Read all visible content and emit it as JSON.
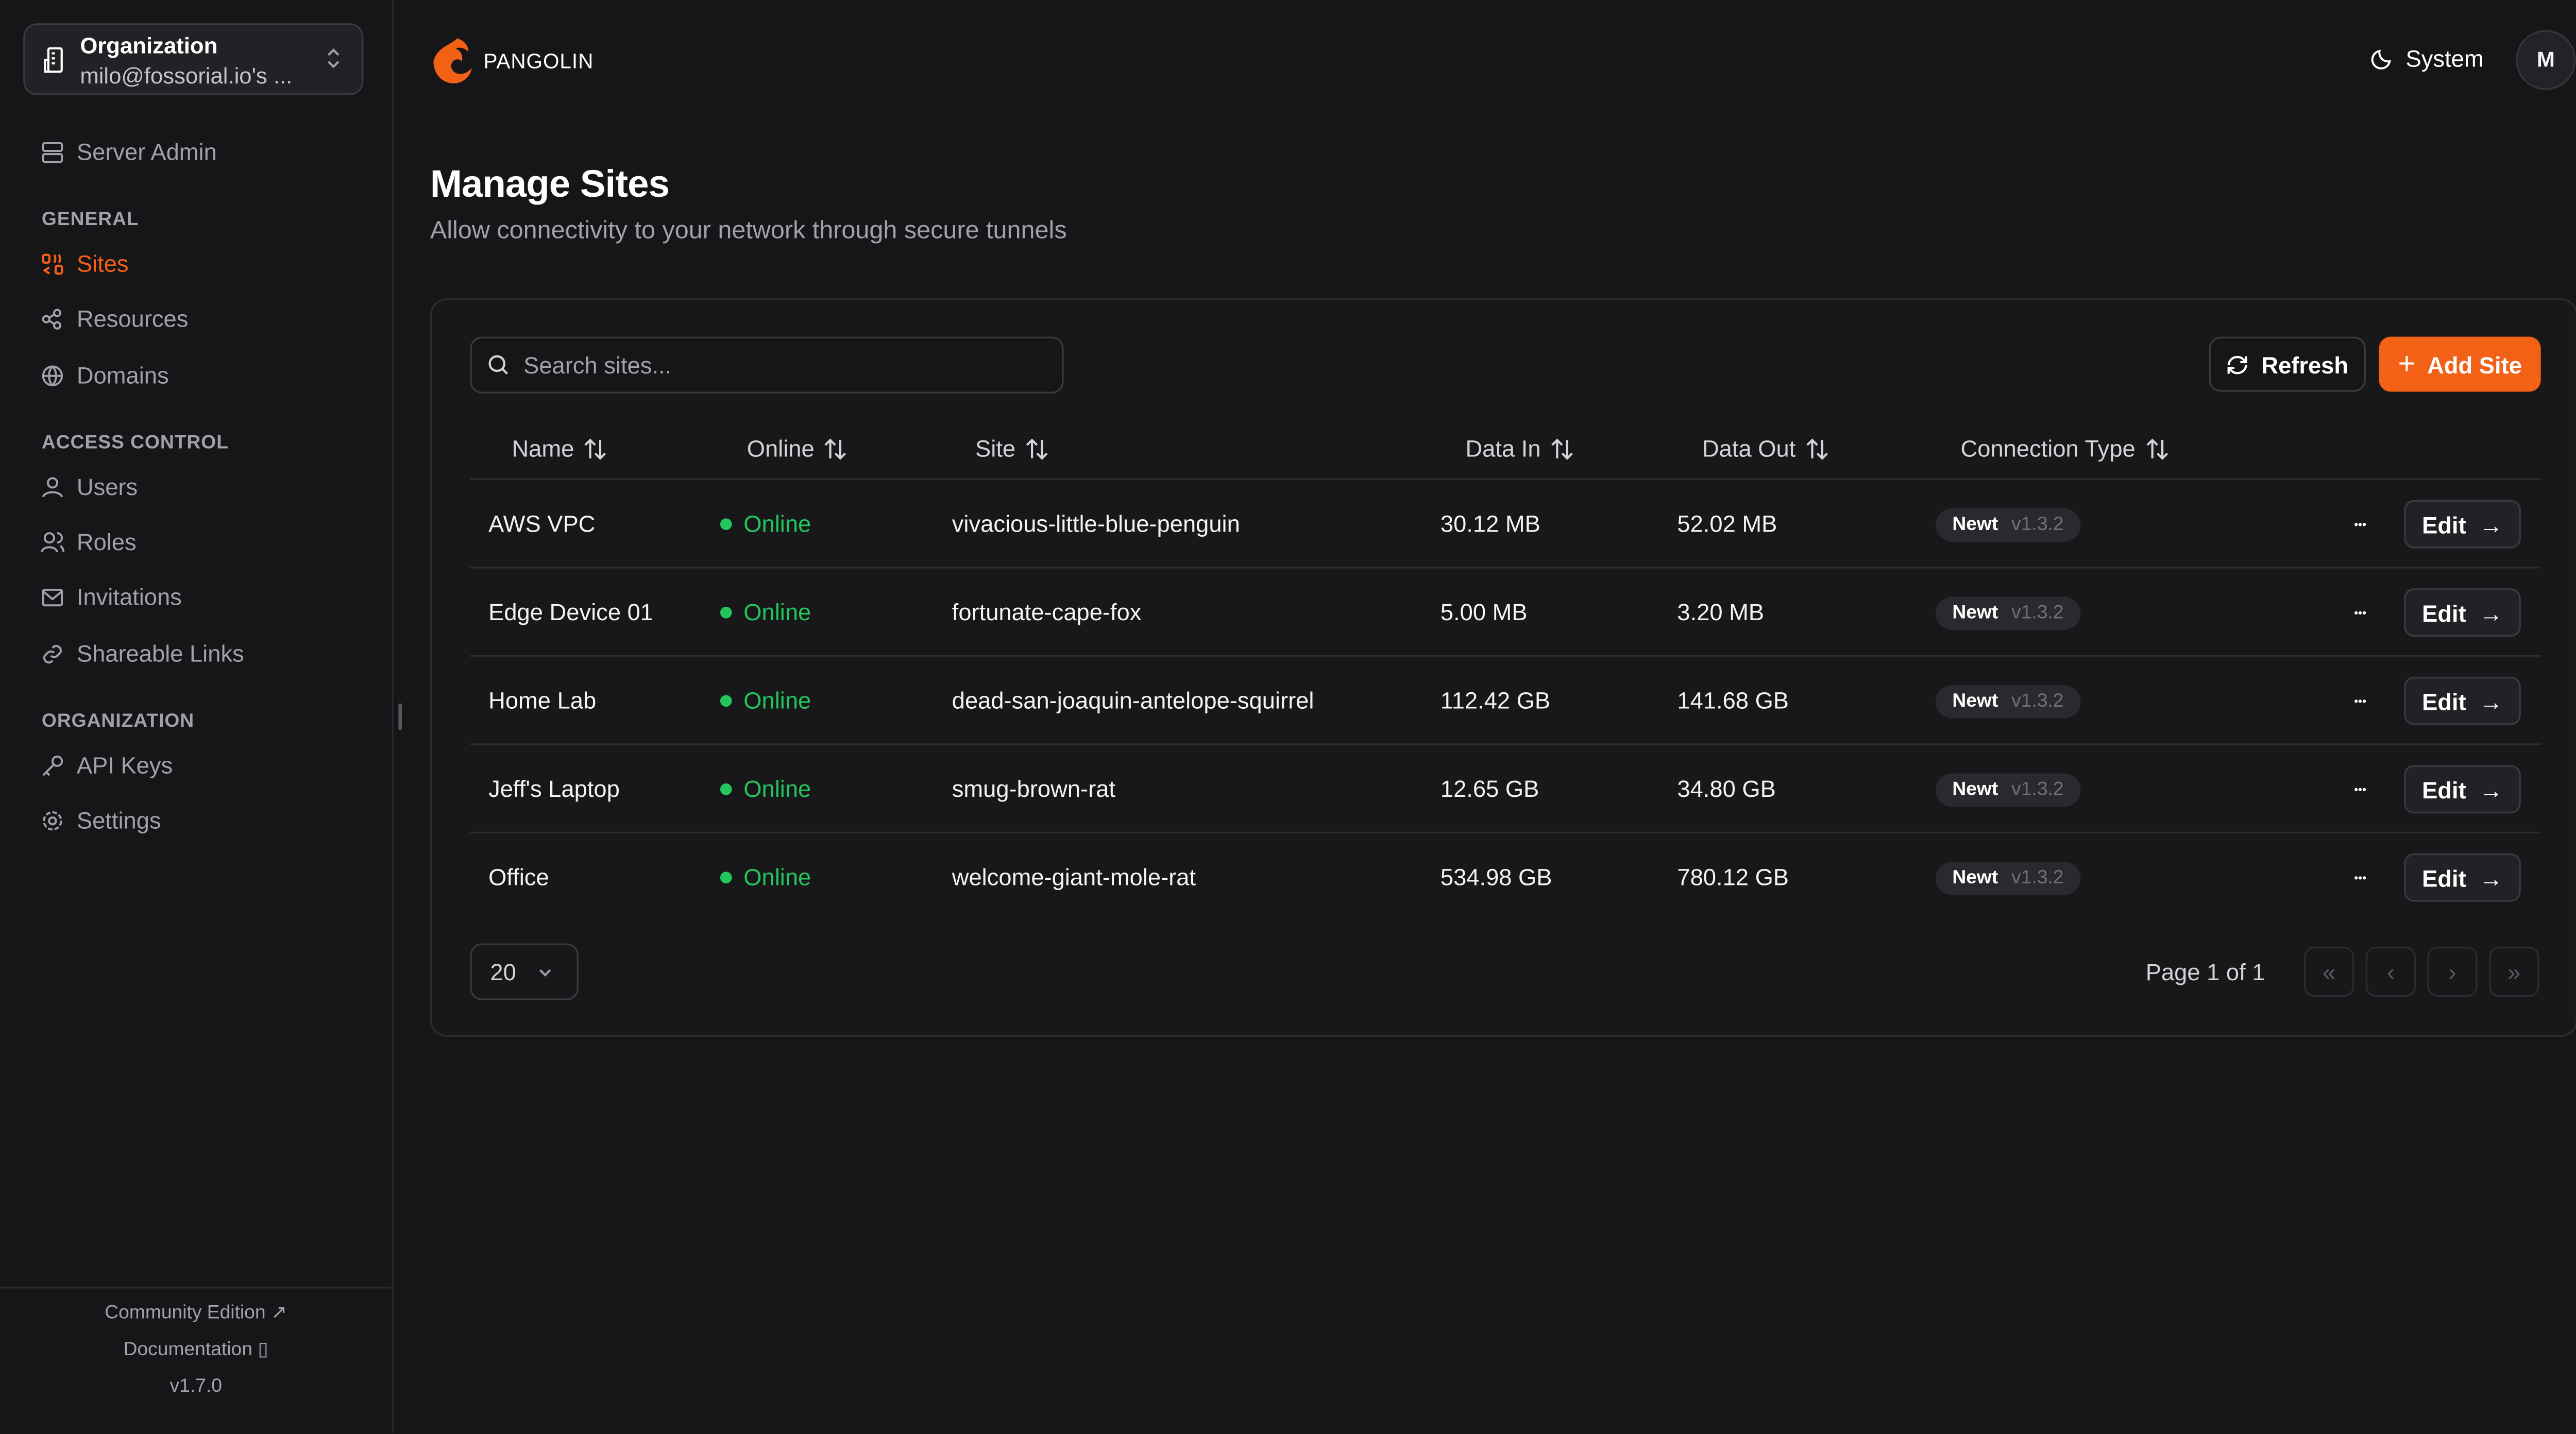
{
  "org": {
    "label": "Organization",
    "name": "milo@fossorial.io's ..."
  },
  "sidebar": {
    "server_admin": "Server Admin",
    "sections": {
      "general": "GENERAL",
      "access": "ACCESS CONTROL",
      "organization": "ORGANIZATION"
    },
    "items": {
      "sites": "Sites",
      "resources": "Resources",
      "domains": "Domains",
      "users": "Users",
      "roles": "Roles",
      "invitations": "Invitations",
      "links": "Shareable Links",
      "api": "API Keys",
      "settings": "Settings"
    },
    "footer": {
      "community": "Community Edition",
      "docs": "Documentation",
      "version": "v1.7.0"
    }
  },
  "header": {
    "brand": "PANGOLIN",
    "theme": "System",
    "avatar": "M"
  },
  "page": {
    "title": "Manage Sites",
    "subtitle": "Allow connectivity to your network through secure tunnels"
  },
  "colors": {
    "accent": "#f36117",
    "online": "#22c55e",
    "background": "#161618"
  },
  "toolbar": {
    "search_placeholder": "Search sites...",
    "refresh": "Refresh",
    "add": "Add Site"
  },
  "table": {
    "columns": [
      "Name",
      "Online",
      "Site",
      "Data In",
      "Data Out",
      "Connection Type"
    ],
    "rows": [
      {
        "name": "AWS VPC",
        "online": "Online",
        "site": "vivacious-little-blue-penguin",
        "in": "30.12 MB",
        "out": "52.02 MB",
        "type": "Newt",
        "ver": "v1.3.2",
        "edit": "Edit"
      },
      {
        "name": "Edge Device 01",
        "online": "Online",
        "site": "fortunate-cape-fox",
        "in": "5.00 MB",
        "out": "3.20 MB",
        "type": "Newt",
        "ver": "v1.3.2",
        "edit": "Edit"
      },
      {
        "name": "Home Lab",
        "online": "Online",
        "site": "dead-san-joaquin-antelope-squirrel",
        "in": "112.42 GB",
        "out": "141.68 GB",
        "type": "Newt",
        "ver": "v1.3.2",
        "edit": "Edit"
      },
      {
        "name": "Jeff's Laptop",
        "online": "Online",
        "site": "smug-brown-rat",
        "in": "12.65 GB",
        "out": "34.80 GB",
        "type": "Newt",
        "ver": "v1.3.2",
        "edit": "Edit"
      },
      {
        "name": "Office",
        "online": "Online",
        "site": "welcome-giant-mole-rat",
        "in": "534.98 GB",
        "out": "780.12 GB",
        "type": "Newt",
        "ver": "v1.3.2",
        "edit": "Edit"
      }
    ]
  },
  "pagination": {
    "page_size": "20",
    "info": "Page 1 of 1"
  }
}
